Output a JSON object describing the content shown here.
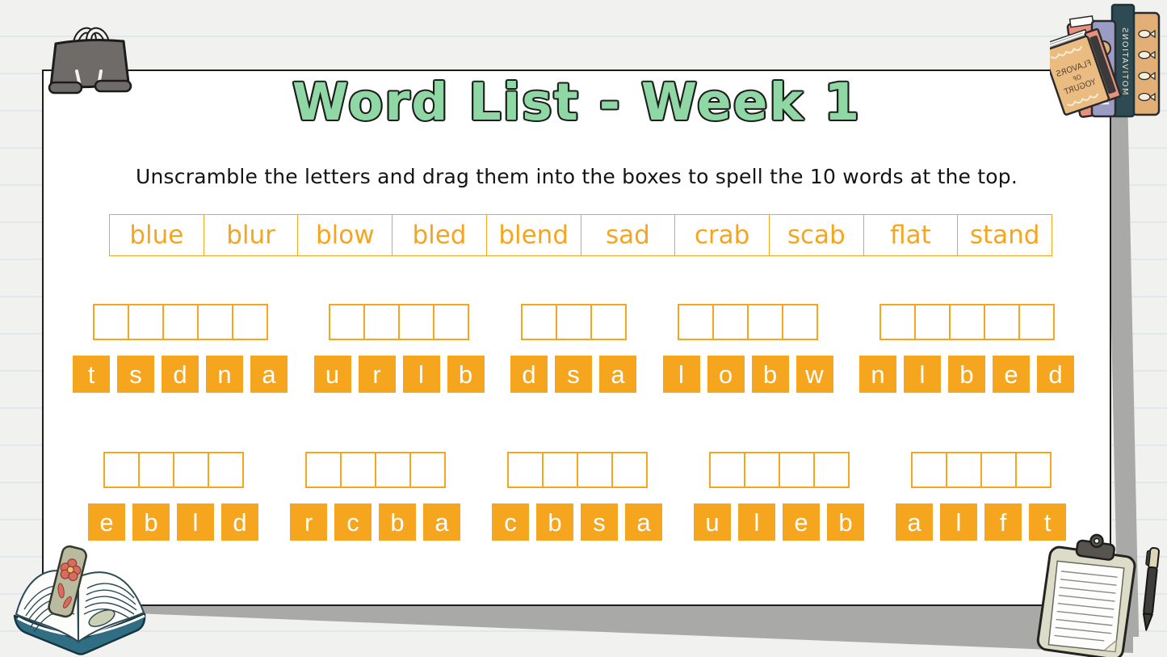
{
  "header": {
    "title": "Word List - Week 1",
    "instruction": "Unscramble the letters and drag them into the boxes to spell the 10 words at the top."
  },
  "word_list": [
    "blue",
    "blur",
    "blow",
    "bled",
    "blend",
    "sad",
    "crab",
    "scab",
    "flat",
    "stand"
  ],
  "puzzle_rows": [
    {
      "groups": [
        {
          "slots": 5,
          "letters": [
            "t",
            "s",
            "d",
            "n",
            "a"
          ]
        },
        {
          "slots": 4,
          "letters": [
            "u",
            "r",
            "l",
            "b"
          ]
        },
        {
          "slots": 3,
          "letters": [
            "d",
            "s",
            "a"
          ]
        },
        {
          "slots": 4,
          "letters": [
            "l",
            "o",
            "b",
            "w"
          ]
        },
        {
          "slots": 5,
          "letters": [
            "n",
            "l",
            "b",
            "e",
            "d"
          ]
        }
      ]
    },
    {
      "groups": [
        {
          "slots": 4,
          "letters": [
            "e",
            "b",
            "l",
            "d"
          ]
        },
        {
          "slots": 4,
          "letters": [
            "r",
            "c",
            "b",
            "a"
          ]
        },
        {
          "slots": 4,
          "letters": [
            "c",
            "b",
            "s",
            "a"
          ]
        },
        {
          "slots": 4,
          "letters": [
            "u",
            "l",
            "e",
            "b"
          ]
        },
        {
          "slots": 4,
          "letters": [
            "a",
            "l",
            "f",
            "t"
          ]
        }
      ]
    }
  ],
  "decorations": {
    "book_cover_title": {
      "line1": "FLAVORS",
      "line2": "OF",
      "line3": "YOGURT"
    },
    "book_spine_title": "MOTIVATIONS"
  },
  "colors": {
    "accent_orange": "#F5A51E",
    "title_green": "#8FD7A4",
    "sheet_border": "#1D1D1B",
    "tile_letter": "#FFFFFF",
    "shadow_gray": "#A9A9A7"
  }
}
